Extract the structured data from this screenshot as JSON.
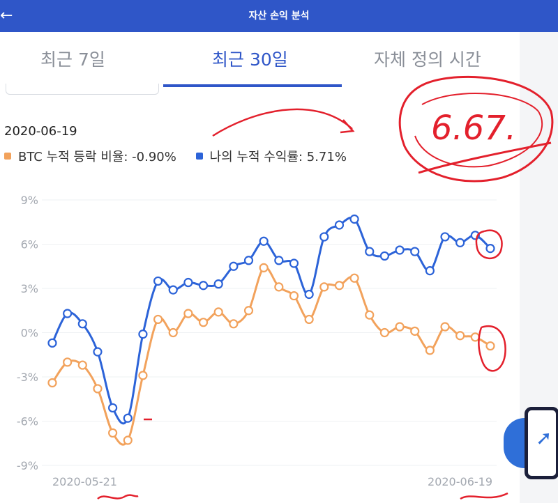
{
  "header": {
    "title": "자산 손익 분석",
    "back_icon": "back-arrow-icon"
  },
  "tabs": [
    {
      "label": "최근 7일",
      "active": false
    },
    {
      "label": "최근 30일",
      "active": true
    },
    {
      "label": "자체 정의 시간",
      "active": false
    }
  ],
  "tooltip": {
    "date": "2020-06-19",
    "btc_label": "BTC 누적 등락 비율: -0.90%",
    "mine_label": "나의 누적 수익률: 5.71%"
  },
  "colors": {
    "accent": "#2f56c8",
    "btc": "#f2a25c",
    "mine": "#2c63d8",
    "annotation": "#e3202c"
  },
  "chart_data": {
    "type": "line",
    "x": [
      "2020-05-21",
      "2020-05-22",
      "2020-05-23",
      "2020-05-24",
      "2020-05-25",
      "2020-05-26",
      "2020-05-27",
      "2020-05-28",
      "2020-05-29",
      "2020-05-30",
      "2020-05-31",
      "2020-06-01",
      "2020-06-02",
      "2020-06-03",
      "2020-06-04",
      "2020-06-05",
      "2020-06-06",
      "2020-06-07",
      "2020-06-08",
      "2020-06-09",
      "2020-06-10",
      "2020-06-11",
      "2020-06-12",
      "2020-06-13",
      "2020-06-14",
      "2020-06-15",
      "2020-06-16",
      "2020-06-17",
      "2020-06-18",
      "2020-06-19"
    ],
    "xtick_labels": [
      "2020-05-21",
      "2020-06-19"
    ],
    "yticks": [
      "9%",
      "6%",
      "3%",
      "0%",
      "-3%",
      "-6%",
      "-9%"
    ],
    "ylim": [
      -9,
      9
    ],
    "series": [
      {
        "name": "BTC",
        "color": "#f2a25c",
        "values": [
          -3.4,
          -2.0,
          -2.2,
          -3.8,
          -6.8,
          -7.3,
          -2.9,
          0.9,
          0.0,
          1.3,
          0.7,
          1.4,
          0.6,
          1.5,
          4.4,
          3.1,
          2.5,
          0.9,
          3.1,
          3.2,
          3.7,
          1.2,
          0.0,
          0.4,
          0.1,
          -1.2,
          0.4,
          -0.2,
          -0.3,
          -0.9
        ]
      },
      {
        "name": "MINE",
        "color": "#2c63d8",
        "values": [
          -0.7,
          1.3,
          0.6,
          -1.3,
          -5.1,
          -5.8,
          -0.1,
          3.5,
          2.9,
          3.4,
          3.2,
          3.3,
          4.5,
          4.9,
          6.2,
          4.9,
          4.7,
          2.6,
          6.5,
          7.3,
          7.7,
          5.5,
          5.2,
          5.6,
          5.5,
          4.2,
          6.5,
          6.1,
          6.6,
          5.71
        ]
      }
    ]
  },
  "annotation": {
    "scribble_text": "6.67."
  }
}
